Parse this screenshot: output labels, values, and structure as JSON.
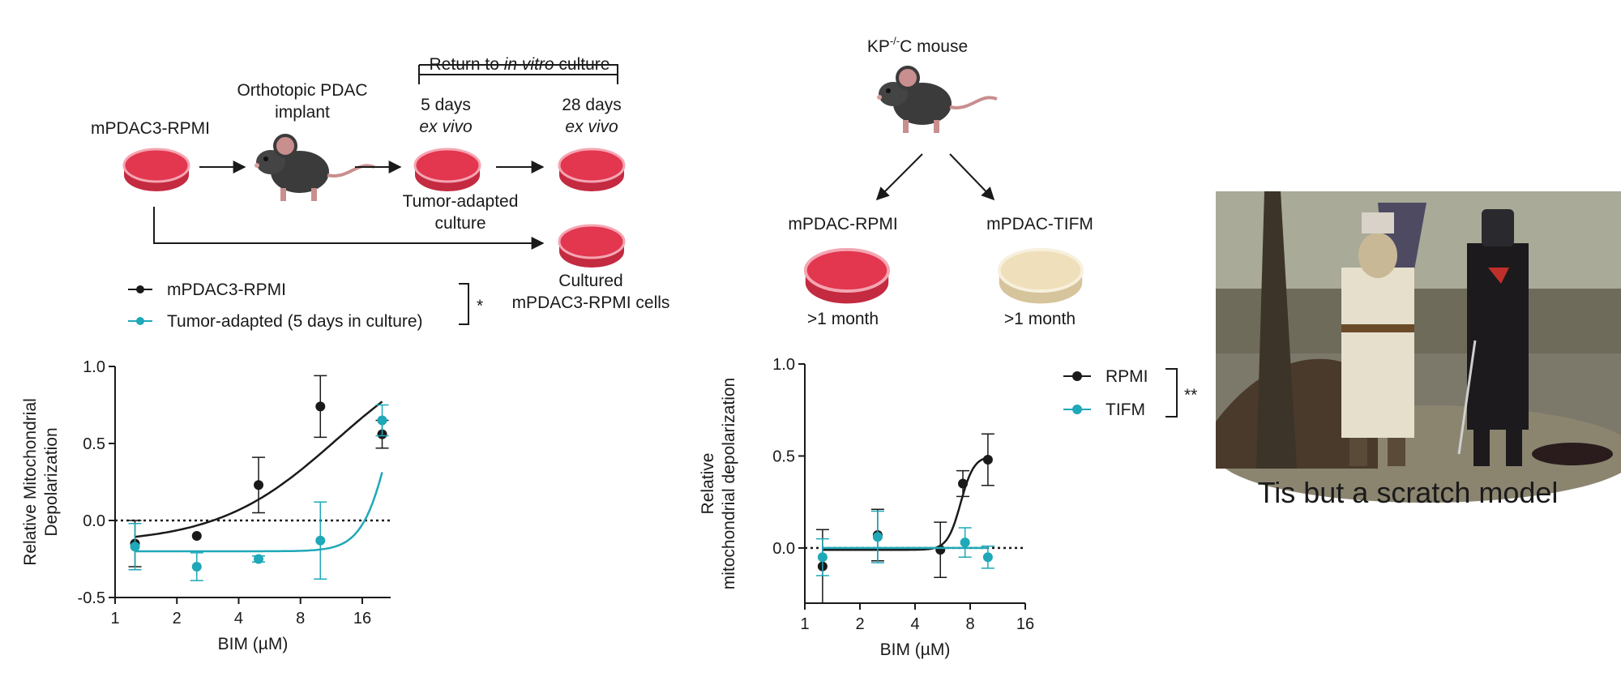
{
  "colors": {
    "black_series": "#1a1a1a",
    "teal_series": "#1fa8b8",
    "dish_red": "#e0334b",
    "dish_cream": "#eedfb8"
  },
  "left_schematic": {
    "source_label": "mPDAC3-RPMI",
    "implant_label_line1": "Orthotopic PDAC",
    "implant_label_line2": "implant",
    "return_label_prefix": "Return to ",
    "return_label_italic": "in vitro",
    "return_label_suffix": " culture",
    "day5_line1": "5 days",
    "day5_line2": "ex vivo",
    "day28_line1": "28 days",
    "day28_line2": "ex vivo",
    "adapted_line1": "Tumor-adapted",
    "adapted_line2": "culture",
    "cultured_line1": "Cultured",
    "cultured_line2": "mPDAC3-RPMI cells",
    "icons": [
      "petri-dish-icon",
      "mouse-icon",
      "arrow-icon"
    ]
  },
  "right_schematic": {
    "mouse_label_pre": "KP",
    "mouse_label_sup": "-/-",
    "mouse_label_post": "C mouse",
    "rpmi_label": "mPDAC-RPMI",
    "tifm_label": "mPDAC-TIFM",
    "rpmi_duration": ">1 month",
    "tifm_duration": ">1 month"
  },
  "meme": {
    "caption": "Tis but a scratch model",
    "image_desc": "black-knight-scene"
  },
  "chart_data": [
    {
      "type": "scatter",
      "title": "",
      "xlabel": "BIM (µM)",
      "ylabel_line1": "Relative Mitochondrial",
      "ylabel_line2": "Depolarization",
      "x_scale": "log2",
      "xlim": [
        1,
        22
      ],
      "ylim": [
        -0.5,
        1.0
      ],
      "xticks": [
        1,
        2,
        4,
        8,
        16
      ],
      "xtick_labels": [
        "1",
        "2",
        "4",
        "8",
        "16"
      ],
      "yticks": [
        -0.5,
        0.0,
        0.5,
        1.0
      ],
      "ytick_labels": [
        "-0.5",
        "0.0",
        "0.5",
        "1.0"
      ],
      "legend_significance": "*",
      "series": [
        {
          "name": "mPDAC3-RPMI",
          "color": "#1a1a1a",
          "x": [
            1.25,
            2.5,
            5,
            10,
            20
          ],
          "y": [
            -0.15,
            -0.1,
            0.23,
            0.74,
            0.56
          ],
          "err": [
            0.15,
            0.0,
            0.18,
            0.2,
            0.09
          ],
          "fit": {
            "bottom": -0.15,
            "top": 1.2,
            "ec50": 12,
            "hill": 1.5
          }
        },
        {
          "name": "Tumor-adapted (5 days in culture)",
          "color": "#1fa8b8",
          "x": [
            1.25,
            2.5,
            5,
            10,
            20
          ],
          "y": [
            -0.17,
            -0.3,
            -0.25,
            -0.13,
            0.65
          ],
          "err": [
            0.15,
            0.09,
            0.02,
            0.25,
            0.1
          ],
          "fit": {
            "bottom": -0.2,
            "top": 1.5,
            "ec50": 23,
            "hill": 6
          }
        }
      ]
    },
    {
      "type": "scatter",
      "title": "",
      "xlabel": "BIM (µM)",
      "ylabel_line1": "Relative",
      "ylabel_line2": "mitochondrial depolarization",
      "x_scale": "log2",
      "xlim": [
        1,
        16
      ],
      "ylim": [
        -0.3,
        1.0
      ],
      "xticks": [
        1,
        2,
        4,
        8,
        16
      ],
      "xtick_labels": [
        "1",
        "2",
        "4",
        "8",
        "16"
      ],
      "yticks": [
        0.0,
        0.5,
        1.0
      ],
      "ytick_labels": [
        "0.0",
        "0.5",
        "1.0"
      ],
      "legend_significance": "**",
      "series": [
        {
          "name": "RPMI",
          "color": "#1a1a1a",
          "x": [
            1.25,
            2.5,
            5.5,
            7.3,
            10
          ],
          "y": [
            -0.1,
            0.07,
            -0.01,
            0.35,
            0.48
          ],
          "err": [
            0.2,
            0.14,
            0.15,
            0.07,
            0.14
          ],
          "fit": {
            "bottom": -0.01,
            "top": 0.5,
            "ec50": 7.1,
            "hill": 12
          }
        },
        {
          "name": "TIFM",
          "color": "#1fa8b8",
          "x": [
            1.25,
            2.5,
            7.5,
            10
          ],
          "y": [
            -0.05,
            0.06,
            0.03,
            -0.05
          ],
          "err": [
            0.1,
            0.14,
            0.08,
            0.06
          ],
          "fit": {
            "bottom": 0.0,
            "top": 0.0,
            "ec50": 7,
            "hill": 1
          }
        }
      ]
    }
  ]
}
